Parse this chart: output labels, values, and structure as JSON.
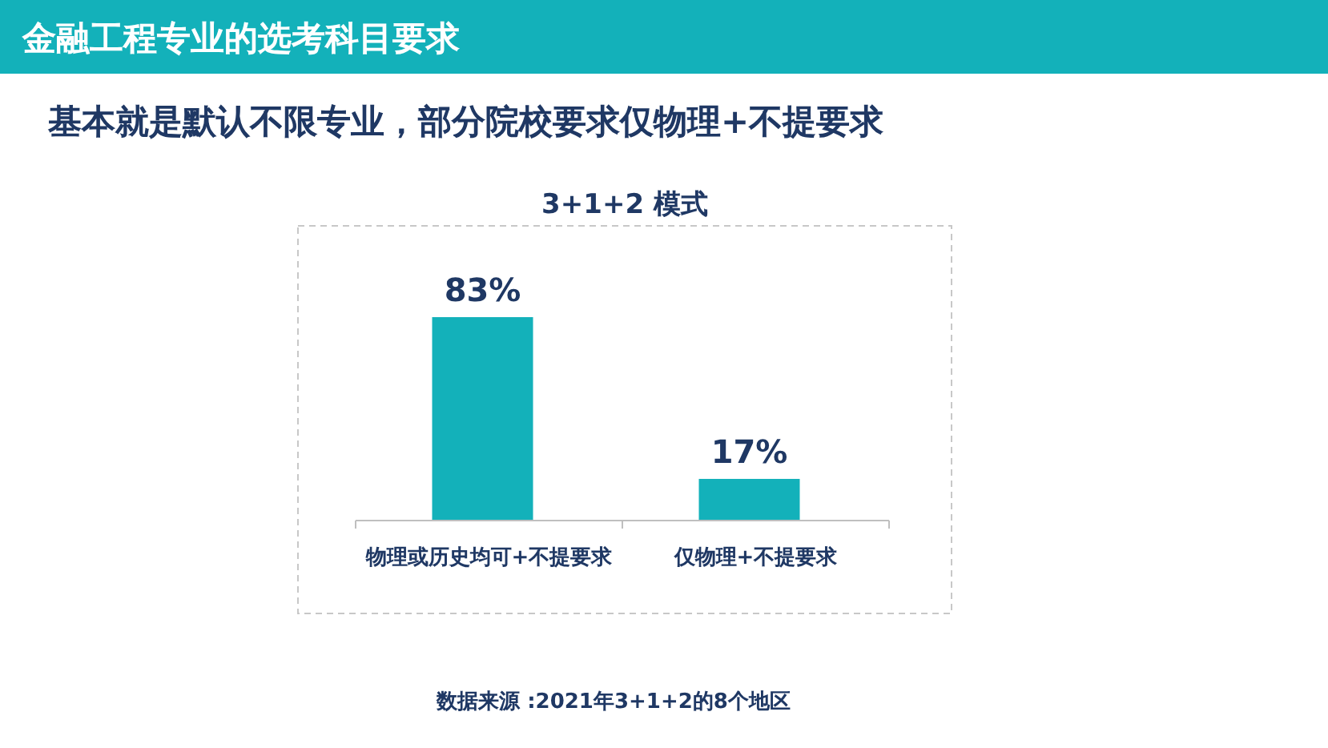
{
  "chart_data": {
    "type": "bar",
    "title": "金融工程专业的选考科目要求",
    "subtitle": "基本就是默认不限专业，部分院校要求仅物理+不提要求",
    "xlabel": "3+1+2 模式",
    "categories": [
      "物理或历史均可+不提要求",
      "仅物理+不提要求"
    ],
    "values": [
      83,
      17
    ],
    "value_labels": [
      "83%",
      "17%"
    ],
    "color": "#13b1ba",
    "annotations": [
      "数据来源 :2021年3+1+2的8个地区"
    ]
  }
}
